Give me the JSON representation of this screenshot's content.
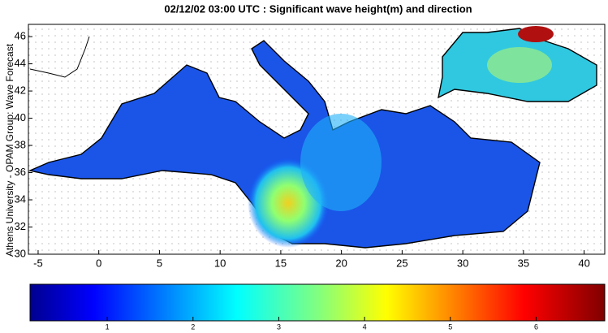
{
  "title": "02/12/02 03:00 UTC : Significant wave height(m) and direction",
  "y_axis_label": "Athens University - OPAM Group: Wave Forecast",
  "map": {
    "xlim": [
      -5.8,
      41.7
    ],
    "ylim": [
      30,
      46.9
    ],
    "xticks": [
      -5,
      0,
      5,
      10,
      15,
      20,
      25,
      30,
      35,
      40
    ],
    "yticks": [
      30,
      32,
      34,
      36,
      38,
      40,
      42,
      44,
      46
    ]
  },
  "colorbar": {
    "lim": [
      0.1,
      6.8
    ],
    "ticks": [
      1,
      2,
      3,
      4,
      5,
      6
    ]
  }
}
